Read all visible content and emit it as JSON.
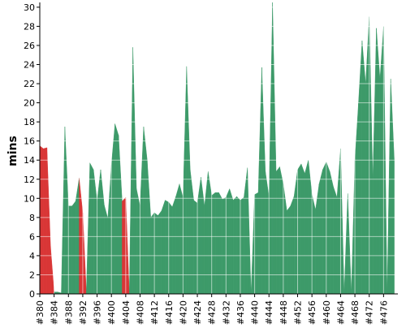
{
  "chart_data": {
    "type": "area",
    "ylabel": "mins",
    "ylim": [
      0,
      30.5
    ],
    "yticks": [
      0,
      2,
      4,
      6,
      8,
      10,
      12,
      14,
      16,
      18,
      20,
      22,
      24,
      26,
      28,
      30
    ],
    "xlim": [
      380,
      480
    ],
    "xticks": [
      380,
      384,
      388,
      392,
      396,
      400,
      404,
      408,
      412,
      416,
      420,
      424,
      428,
      432,
      436,
      440,
      444,
      448,
      452,
      456,
      460,
      464,
      468,
      472,
      476
    ],
    "xtick_labels": [
      "#380",
      "#384",
      "#388",
      "#392",
      "#396",
      "#400",
      "#404",
      "#408",
      "#412",
      "#416",
      "#420",
      "#424",
      "#428",
      "#432",
      "#436",
      "#440",
      "#444",
      "#448",
      "#452",
      "#456",
      "#460",
      "#464",
      "#468",
      "#472",
      "#476"
    ],
    "grid": true,
    "colors": {
      "ok": "#3d9a69",
      "fail": "#d93636",
      "grid": "#ffffff",
      "background": "#ffffff"
    },
    "x": [
      380,
      381,
      382,
      383,
      384,
      385,
      386,
      387,
      388,
      389,
      390,
      391,
      392,
      393,
      394,
      395,
      396,
      397,
      398,
      399,
      400,
      401,
      402,
      403,
      404,
      405,
      406,
      407,
      408,
      409,
      410,
      411,
      412,
      413,
      414,
      415,
      416,
      417,
      418,
      419,
      420,
      421,
      422,
      423,
      424,
      425,
      426,
      427,
      428,
      429,
      430,
      431,
      432,
      433,
      434,
      435,
      436,
      437,
      438,
      439,
      440,
      441,
      442,
      443,
      444,
      445,
      446,
      447,
      448,
      449,
      450,
      451,
      452,
      453,
      454,
      455,
      456,
      457,
      458,
      459,
      460,
      461,
      462,
      463,
      464,
      465,
      466,
      467,
      468,
      469,
      470,
      471,
      472,
      473,
      474,
      475,
      476,
      477,
      478,
      479
    ],
    "values": [
      15.5,
      15.2,
      15.3,
      5.0,
      0.2,
      0.2,
      0.1,
      17.5,
      9.2,
      9.2,
      9.7,
      12.1,
      8.5,
      0.2,
      13.7,
      13.0,
      9.7,
      13.0,
      9.3,
      7.9,
      13.5,
      17.8,
      16.6,
      9.7,
      10.1,
      0.1,
      25.8,
      11.0,
      9.2,
      17.5,
      14.0,
      8.0,
      8.5,
      8.2,
      8.7,
      9.8,
      9.6,
      9.1,
      10.2,
      11.5,
      10.1,
      23.8,
      13.0,
      9.8,
      9.5,
      12.2,
      9.2,
      12.8,
      10.3,
      10.6,
      10.6,
      9.9,
      10.1,
      11.0,
      9.8,
      10.2,
      9.8,
      10.1,
      13.2,
      0.1,
      10.4,
      10.6,
      23.7,
      12.8,
      10.2,
      30.5,
      12.8,
      13.3,
      11.5,
      8.7,
      9.2,
      10.2,
      13.0,
      13.6,
      12.6,
      14.0,
      10.4,
      8.8,
      11.5,
      13.0,
      13.8,
      12.8,
      11.2,
      10.1,
      15.2,
      0.1,
      10.5,
      0.1,
      14.0,
      20.0,
      26.5,
      22.0,
      29.0,
      12.0,
      27.8,
      22.5,
      28.0,
      0.1,
      22.5,
      14.0
    ],
    "failed": [
      380,
      381,
      382,
      383,
      392,
      404,
      439,
      465,
      467,
      477
    ]
  }
}
